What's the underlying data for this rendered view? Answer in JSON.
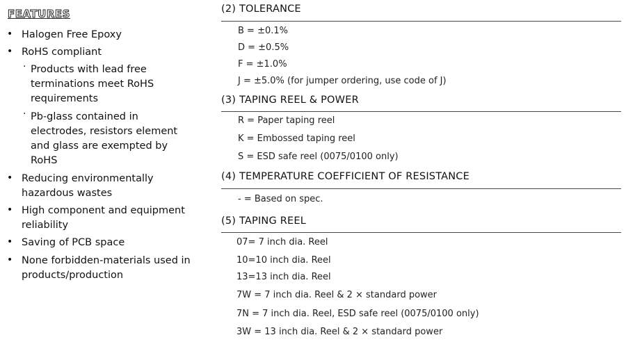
{
  "features": {
    "title": "FEATURES",
    "items": [
      {
        "lines": [
          "Halogen Free Epoxy"
        ]
      },
      {
        "lines": [
          "RoHS compliant"
        ],
        "sub": [
          {
            "lines": [
              "Products with lead free",
              "terminations meet RoHS",
              "requirements"
            ]
          },
          {
            "lines": [
              "Pb-glass contained in",
              "electrodes, resistors element",
              "and glass are exempted by",
              "RoHS"
            ]
          }
        ]
      },
      {
        "lines": [
          "Reducing environmentally",
          "hazardous wastes"
        ]
      },
      {
        "lines": [
          "High component and equipment",
          "reliability"
        ]
      },
      {
        "lines": [
          "Saving of PCB space"
        ]
      },
      {
        "lines": [
          "None forbidden-materials used in",
          "products/production"
        ]
      }
    ]
  },
  "sections": [
    {
      "heading": "(2) TOLERANCE",
      "items": [
        "B = ±0.1%",
        "D = ±0.5%",
        "F = ±1.0%",
        "J = ±5.0% (for jumper ordering, use code of J)"
      ]
    },
    {
      "heading": "(3) TAPING REEL & POWER",
      "items": [
        "R = Paper taping reel",
        "K = Embossed taping reel",
        "S = ESD safe reel (0075/0100 only)"
      ]
    },
    {
      "heading": "(4) TEMPERATURE COEFFICIENT OF RESISTANCE",
      "items": [
        "- = Based on spec."
      ]
    },
    {
      "heading": "(5) TAPING REEL",
      "items": [
        "07= 7 inch dia. Reel",
        "10=10 inch dia. Reel",
        "13=13 inch dia. Reel",
        "7W = 7 inch dia. Reel & 2 × standard power",
        "7N = 7 inch dia. Reel, ESD safe reel (0075/0100 only)",
        "3W = 13 inch dia. Reel & 2 × standard power"
      ]
    }
  ]
}
